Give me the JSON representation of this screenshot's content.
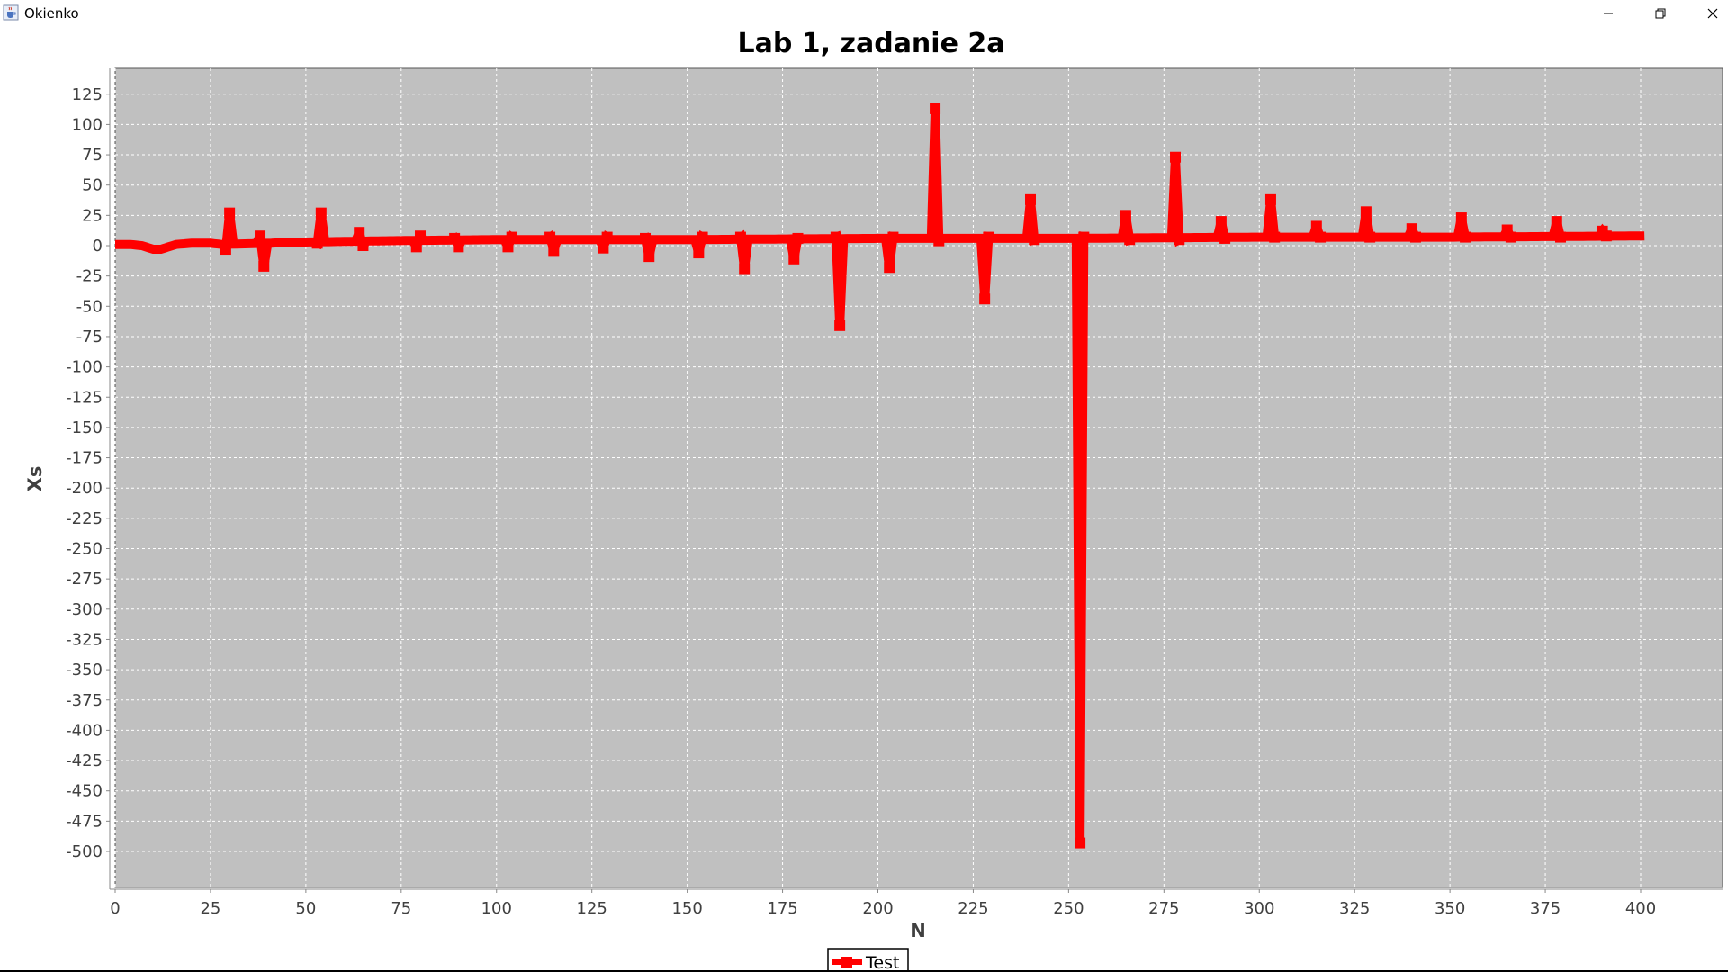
{
  "window": {
    "title": "Okienko",
    "app_icon": "java-cup-icon",
    "controls": [
      "minimize-icon",
      "restore-icon",
      "close-icon"
    ]
  },
  "chart_data": {
    "type": "line",
    "title": "Lab 1, zadanie 2a",
    "xlabel": "N",
    "ylabel": "Xs",
    "xlim": [
      0,
      420
    ],
    "ylim": [
      -510,
      137
    ],
    "xticks": [
      0,
      25,
      50,
      75,
      100,
      125,
      150,
      175,
      200,
      225,
      250,
      275,
      300,
      325,
      350,
      375,
      400
    ],
    "yticks": [
      125,
      100,
      75,
      50,
      25,
      0,
      -25,
      -50,
      -75,
      -100,
      -125,
      -150,
      -175,
      -200,
      -225,
      -250,
      -275,
      -300,
      -325,
      -350,
      -375,
      -400,
      -425,
      -450,
      -475,
      -500
    ],
    "grid": true,
    "plot_background": "#c0c0c0",
    "series": [
      {
        "name": "Test",
        "color": "#ff0000",
        "baseline": [
          [
            0,
            1
          ],
          [
            4,
            1
          ],
          [
            7,
            0
          ],
          [
            9,
            -2
          ],
          [
            10,
            -3
          ],
          [
            12,
            -3
          ],
          [
            14,
            -1
          ],
          [
            16,
            1
          ],
          [
            20,
            2
          ],
          [
            25,
            2
          ],
          [
            28,
            1
          ],
          [
            40,
            2
          ],
          [
            50,
            3
          ],
          [
            70,
            4
          ],
          [
            100,
            5
          ],
          [
            150,
            5
          ],
          [
            200,
            6
          ],
          [
            250,
            6
          ],
          [
            300,
            7
          ],
          [
            350,
            7
          ],
          [
            401,
            8
          ]
        ],
        "spikes": [
          [
            29,
            -3
          ],
          [
            30,
            27
          ],
          [
            38,
            8
          ],
          [
            39,
            -17
          ],
          [
            53,
            2
          ],
          [
            54,
            27
          ],
          [
            64,
            11
          ],
          [
            65,
            0
          ],
          [
            79,
            -1
          ],
          [
            80,
            8
          ],
          [
            89,
            6
          ],
          [
            90,
            -1
          ],
          [
            103,
            -1
          ],
          [
            104,
            7
          ],
          [
            114,
            7
          ],
          [
            115,
            -4
          ],
          [
            128,
            -2
          ],
          [
            129,
            7
          ],
          [
            139,
            6
          ],
          [
            140,
            -9
          ],
          [
            153,
            -6
          ],
          [
            154,
            7
          ],
          [
            164,
            7
          ],
          [
            165,
            -19
          ],
          [
            178,
            -11
          ],
          [
            179,
            6
          ],
          [
            189,
            7
          ],
          [
            190,
            -66
          ],
          [
            203,
            -18
          ],
          [
            204,
            7
          ],
          [
            215,
            113
          ],
          [
            216,
            4
          ],
          [
            228,
            -44
          ],
          [
            229,
            7
          ],
          [
            240,
            38
          ],
          [
            241,
            5
          ],
          [
            253,
            -493
          ],
          [
            254,
            7
          ],
          [
            265,
            25
          ],
          [
            266,
            5
          ],
          [
            278,
            73
          ],
          [
            279,
            5
          ],
          [
            290,
            20
          ],
          [
            291,
            6
          ],
          [
            303,
            38
          ],
          [
            304,
            7
          ],
          [
            315,
            16
          ],
          [
            316,
            7
          ],
          [
            328,
            28
          ],
          [
            329,
            7
          ],
          [
            340,
            14
          ],
          [
            341,
            7
          ],
          [
            353,
            23
          ],
          [
            354,
            7
          ],
          [
            365,
            13
          ],
          [
            366,
            7
          ],
          [
            378,
            20
          ],
          [
            379,
            7
          ],
          [
            390,
            12
          ],
          [
            391,
            8
          ]
        ]
      }
    ],
    "legend": {
      "position": "bottom-center",
      "entries": [
        "Test"
      ]
    }
  }
}
